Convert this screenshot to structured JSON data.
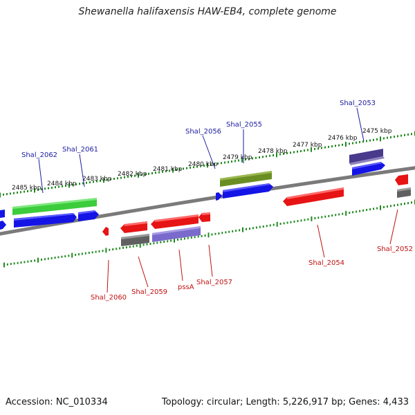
{
  "title": "Shewanella halifaxensis HAW-EB4, complete genome",
  "footer": {
    "accession": "Accession: NC_010334",
    "summary": "Topology: circular; Length: 5,226,917 bp; Genes: 4,433"
  },
  "colors": {
    "background": "#ffffff",
    "backbone": "#808080",
    "ruler_ticks": "#1e8a1e",
    "forward_label": "#1a1aa0",
    "reverse_label": "#c01010",
    "cds_forward": "#1414e6",
    "cds_reverse": "#e61414",
    "rna_forward": "#3ccc3c",
    "rna_olive": "#6b8e23",
    "gene_dark_blue": "#4a3a8c",
    "gene_gray": "#606060",
    "gene_lavender": "#7a6acc"
  },
  "scale_labels": [
    {
      "text": "2485 kbp",
      "kbp": 2485
    },
    {
      "text": "2484 kbp",
      "kbp": 2484
    },
    {
      "text": "2483 kbp",
      "kbp": 2483
    },
    {
      "text": "2482 kbp",
      "kbp": 2482
    },
    {
      "text": "2481 kbp",
      "kbp": 2481
    },
    {
      "text": "2480 kbp",
      "kbp": 2480
    },
    {
      "text": "2479 kbp",
      "kbp": 2479
    },
    {
      "text": "2478 kbp",
      "kbp": 2478
    },
    {
      "text": "2477 kbp",
      "kbp": 2477
    },
    {
      "text": "2476 kbp",
      "kbp": 2476
    },
    {
      "text": "2475 kbp",
      "kbp": 2475
    }
  ],
  "genes_forward": [
    {
      "label": "Shal_2062"
    },
    {
      "label": "Shal_2061"
    },
    {
      "label": "Shal_2056"
    },
    {
      "label": "Shal_2055"
    },
    {
      "label": "Shal_2053"
    }
  ],
  "genes_reverse": [
    {
      "label": "Shal_2060"
    },
    {
      "label": "Shal_2059"
    },
    {
      "label": "pssA"
    },
    {
      "label": "Shal_2057"
    },
    {
      "label": "Shal_2054"
    },
    {
      "label": "Shal_2052"
    }
  ]
}
